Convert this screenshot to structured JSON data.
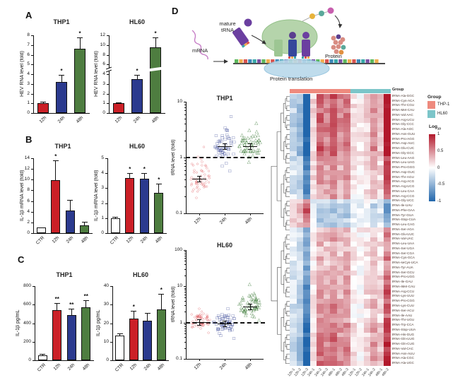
{
  "figure": {
    "panels": {
      "a": "A",
      "b": "B",
      "c": "C",
      "d": "D"
    }
  },
  "diagram": {
    "mature_trna_label": "mature tRNA",
    "mrna_label": "mRNA",
    "protein_translation_label": "Protein translation",
    "protein_label": "Protein"
  },
  "heatmap_header": "Group",
  "heatmap_legend": {
    "group_title": "Group",
    "group_items": [
      {
        "label": "THP-1",
        "color": "#ee8a7e"
      },
      {
        "label": "HL60",
        "color": "#7cc5c9"
      }
    ],
    "colorbar_title_base": "Log",
    "colorbar_title_sub": "10",
    "colorbar_ticks": [
      "1",
      "0.5",
      "0",
      "-0.5",
      "-1"
    ]
  },
  "chart_data": [
    {
      "id": "A_THP1",
      "type": "bar",
      "title": "THP1",
      "ylabel": "HEV RNA level (fold)",
      "yticks": [
        0,
        1,
        2,
        3,
        4,
        5,
        6,
        7,
        8
      ],
      "categories": [
        "12h",
        "24h",
        "48h"
      ],
      "values": [
        1.0,
        3.2,
        6.6
      ],
      "errors": [
        0.15,
        0.72,
        1.15
      ],
      "sig": [
        "",
        "*",
        "*"
      ],
      "colors": [
        "#cb2027",
        "#2b3a8e",
        "#4e7d40"
      ]
    },
    {
      "id": "A_HL60",
      "type": "bar",
      "title": "HL60",
      "ylabel": "HEV RNA level (fold)",
      "yticks": [
        0,
        1,
        2,
        3,
        4,
        6,
        8,
        10,
        12
      ],
      "axis_break_between": [
        4,
        6
      ],
      "categories": [
        "12h",
        "24h",
        "48h"
      ],
      "values": [
        1.0,
        3.5,
        9.5
      ],
      "errors": [
        0.1,
        0.45,
        2.1
      ],
      "sig": [
        "",
        "*",
        "*"
      ],
      "colors": [
        "#cb2027",
        "#2b3a8e",
        "#4e7d40"
      ]
    },
    {
      "id": "B_THP1",
      "type": "bar",
      "title": "THP1",
      "ylabel": "IL-1β mRNA level (fold)",
      "yticks": [
        0,
        2,
        4,
        6,
        8,
        10,
        12,
        14
      ],
      "categories": [
        "CTR",
        "12h",
        "24h",
        "48h"
      ],
      "values": [
        1.0,
        9.9,
        4.2,
        1.4
      ],
      "errors": [
        0.12,
        3.7,
        2.0,
        0.7
      ],
      "sig": [
        "",
        "*",
        "",
        ""
      ],
      "colors": [
        "#ffffff",
        "#cb2027",
        "#2b3a8e",
        "#4e7d40"
      ]
    },
    {
      "id": "B_HL60",
      "type": "bar",
      "title": "HL60",
      "ylabel": "IL-1β mRNA level (fold)",
      "yticks": [
        0,
        1,
        2,
        3,
        4,
        5
      ],
      "categories": [
        "CTR",
        "12h",
        "24h",
        "48h"
      ],
      "values": [
        1.0,
        3.7,
        3.65,
        2.7
      ],
      "errors": [
        0.1,
        0.3,
        0.35,
        0.6
      ],
      "sig": [
        "",
        "*",
        "*",
        "*"
      ],
      "colors": [
        "#ffffff",
        "#cb2027",
        "#2b3a8e",
        "#4e7d40"
      ]
    },
    {
      "id": "C_THP1",
      "type": "bar",
      "title": "THP1",
      "ylabel": "IL-1β pg/mL",
      "yticks": [
        0,
        200,
        400,
        600,
        800
      ],
      "categories": [
        "CTR",
        "12h",
        "24h",
        "48h"
      ],
      "values": [
        50,
        540,
        490,
        575
      ],
      "errors": [
        15,
        80,
        70,
        75
      ],
      "sig": [
        "",
        "**",
        "**",
        "**"
      ],
      "colors": [
        "#ffffff",
        "#cb2027",
        "#2b3a8e",
        "#4e7d40"
      ]
    },
    {
      "id": "C_HL60",
      "type": "bar",
      "title": "HL60",
      "ylabel": "IL-1β pg/mL",
      "yticks": [
        0,
        10,
        20,
        30,
        40
      ],
      "categories": [
        "CTR",
        "12h",
        "24h",
        "48h"
      ],
      "values": [
        13.5,
        22.5,
        21.5,
        27.5
      ],
      "errors": [
        1,
        4,
        4,
        8.5
      ],
      "sig": [
        "",
        "*",
        "",
        "*"
      ],
      "colors": [
        "#ffffff",
        "#cb2027",
        "#2b3a8e",
        "#4e7d40"
      ]
    },
    {
      "id": "D_THP1",
      "type": "scatter",
      "title": "THP1",
      "ylabel": "tRNA level (fold)",
      "y_scale": "log",
      "ylim": [
        0.1,
        10
      ],
      "yticks": [
        0.1,
        1,
        10
      ],
      "reference_line": 1,
      "groups": [
        {
          "label": "12h",
          "marker": "circle",
          "color": "#d42027",
          "n": 57,
          "median": 0.42,
          "range": [
            0.18,
            1.5
          ]
        },
        {
          "label": "24h",
          "marker": "square",
          "color": "#2b3a8e",
          "n": 57,
          "median": 1.6,
          "range": [
            0.55,
            5.2
          ]
        },
        {
          "label": "48h",
          "marker": "triangle",
          "color": "#3e7c39",
          "n": 57,
          "median": 1.6,
          "range": [
            0.8,
            4.0
          ]
        }
      ]
    },
    {
      "id": "D_HL60",
      "type": "scatter",
      "title": "HL60",
      "ylabel": "tRNA level (fold)",
      "y_scale": "log",
      "ylim": [
        0.1,
        100
      ],
      "yticks": [
        0.1,
        1,
        10,
        100
      ],
      "reference_line": 1,
      "groups": [
        {
          "label": "12h",
          "marker": "circle",
          "color": "#d42027",
          "n": 57,
          "median": 1.05,
          "range": [
            0.5,
            2.3
          ]
        },
        {
          "label": "24h",
          "marker": "square",
          "color": "#2b3a8e",
          "n": 57,
          "median": 0.95,
          "range": [
            0.35,
            2.3
          ]
        },
        {
          "label": "48h",
          "marker": "triangle",
          "color": "#3e7c39",
          "n": 57,
          "median": 2.8,
          "range": [
            1.1,
            11
          ]
        }
      ]
    },
    {
      "id": "D_HEAT",
      "type": "heatmap",
      "col_groups": [
        {
          "name": "THP-1",
          "color": "#ee8a7e",
          "cols": 9
        },
        {
          "name": "HL60",
          "color": "#7cc5c9",
          "cols": 6
        }
      ],
      "col_labels": [
        "12h-1",
        "12h-2",
        "12h-3",
        "24h-1",
        "24h-2",
        "24h-3",
        "48h-1",
        "48h-2",
        "48h-3",
        "12h-1",
        "12h-2",
        "24h-1",
        "24h-2",
        "48h-1",
        "48h-2"
      ],
      "row_labels": [
        "tRNA-Ala-GGC",
        "tRNA-Cys-ACA",
        "tRNA-Thr-CGU",
        "tRNA-Met-CAU",
        "tRNA-Val-AAC",
        "tRNA-Arg-UCU",
        "tRNA-Gly-CCC",
        "tRNA-Ala-AGC",
        "tRNA-Asn-GUU",
        "tRNA-Pro-AGG",
        "tRNA-Asp-AUC",
        "tRNA-Glu-CUC",
        "tRNA-Gly-GCC",
        "tRNA-Leu-AAG",
        "tRNA-Leu-UAG",
        "tRNA-Pro-GGG",
        "tRNA-Asp-GUC",
        "tRNA-Thr-AGU",
        "tRNA-Arg-ACG",
        "tRNA-Arg-UCG",
        "tRNA-Leu-CAA",
        "tRNA-Arg-CCG",
        "tRNA-Gly-UCC",
        "tRNA-Ile-UAU",
        "tRNA-Phe-GAA",
        "tRNA-Tyr-GUA",
        "tRNA-Stop-CUA",
        "tRNA-Leu-CAG",
        "tRNA-Ser-AGA",
        "tRNA-Glu-UUC",
        "tRNA-Val-UAC",
        "tRNA-Leu-UAA",
        "tRNA-Ser-UGA",
        "tRNA-Ser-CGA",
        "tRNA-Cys-GCA",
        "tRNA-seCys-UCA",
        "tRNA-Tyr-AUA",
        "tRNA-Ser-GCU",
        "tRNA-Pro-UGG",
        "tRNA-Ile-GAU",
        "tRNA-iMet-CAU",
        "tRNA-Arg-CCU",
        "tRNA-Lys-UUU",
        "tRNA-Pro-CGG",
        "tRNA-Lys-CUU",
        "tRNA-Ser-ACU",
        "tRNA-Ile-AAU",
        "tRNA-Thr-UGU",
        "tRNA-Trp-CCA",
        "tRNA-Stop-UUA",
        "tRNA-His-GUG",
        "tRNA-Gln-UUG",
        "tRNA-Gln-CUG",
        "tRNA-Val-CAC",
        "tRNA-Asn-AUU",
        "tRNA-Ala-CGC",
        "tRNA-Ala-UGC"
      ],
      "scale": {
        "low_color": "#2166ac",
        "mid_color": "#ffffff",
        "high_color": "#b2182b",
        "min": -1,
        "max": 1
      },
      "col_profile": [
        -0.25,
        -0.4,
        -1.05,
        0.15,
        0.6,
        0.5,
        0.65,
        0.45,
        0.55,
        0.12,
        0.05,
        0.18,
        0.4,
        0.22,
        0.95
      ],
      "row_weights": [
        1.2,
        1.1,
        1.0,
        1.05,
        1.1,
        1.15,
        1.2,
        1.1,
        1.05,
        1.0,
        1.1,
        1.25,
        1.1,
        0.8,
        0.75,
        0.7,
        0.75,
        0.8,
        0.7,
        0.75,
        0.7,
        0.65,
        -0.5,
        -0.65,
        -0.7,
        -0.6,
        -0.55,
        -0.5,
        0.5,
        0.55,
        0.6,
        0.5,
        0.45,
        0.55,
        0.6,
        0.5,
        0.55,
        0.6,
        0.65,
        0.7,
        0.75,
        0.8,
        0.7,
        0.75,
        0.8,
        0.75,
        0.7,
        0.75,
        0.95,
        1.0,
        0.9,
        1.0,
        1.05,
        0.95,
        1.0,
        1.05,
        1.1
      ]
    }
  ]
}
